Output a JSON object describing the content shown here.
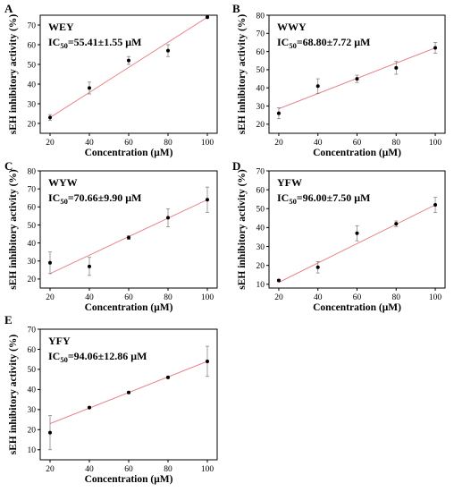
{
  "chart_data": [
    {
      "type": "scatter",
      "panel_label": "A",
      "series_label": "WEY",
      "ic50_prefix": "IC",
      "ic50_sub": "50",
      "ic50_value": "=55.41±1.55 μM",
      "xlabel": "Concentration (μM)",
      "ylabel": "sEH inhibitory activity (%)",
      "xlim": [
        15,
        105
      ],
      "ylim": [
        15,
        75
      ],
      "xticks": [
        20,
        40,
        60,
        80,
        100
      ],
      "yticks": [
        20,
        30,
        40,
        50,
        60,
        70
      ],
      "x": [
        20,
        40,
        60,
        80,
        100
      ],
      "y": [
        23,
        38,
        52,
        57,
        74
      ],
      "yerr": [
        1.5,
        3,
        2,
        3,
        0.5
      ],
      "fit": [
        [
          20,
          23
        ],
        [
          100,
          74
        ]
      ],
      "colors": {
        "points": "#000000",
        "fit": "#e8777e"
      }
    },
    {
      "type": "scatter",
      "panel_label": "B",
      "series_label": "WWY",
      "ic50_prefix": "IC",
      "ic50_sub": "50",
      "ic50_value": "=68.80±7.72 μM",
      "xlabel": "Concentration (μM)",
      "ylabel": "sEH inhibitory activity (%)",
      "xlim": [
        15,
        105
      ],
      "ylim": [
        15,
        80
      ],
      "xticks": [
        20,
        40,
        60,
        80,
        100
      ],
      "yticks": [
        20,
        30,
        40,
        50,
        60,
        70,
        80
      ],
      "x": [
        20,
        40,
        60,
        80,
        100
      ],
      "y": [
        26,
        41,
        45,
        51,
        62
      ],
      "yerr": [
        3,
        4,
        2,
        3.5,
        3
      ],
      "fit": [
        [
          20,
          28.5
        ],
        [
          100,
          62
        ]
      ],
      "colors": {
        "points": "#000000",
        "fit": "#e8777e"
      }
    },
    {
      "type": "scatter",
      "panel_label": "C",
      "series_label": "WYW",
      "ic50_prefix": "IC",
      "ic50_sub": "50",
      "ic50_value": "=70.66±9.90 μM",
      "xlabel": "Concentration (μM)",
      "ylabel": "sEH inhibitory activity (%)",
      "xlim": [
        15,
        105
      ],
      "ylim": [
        15,
        80
      ],
      "xticks": [
        20,
        40,
        60,
        80,
        100
      ],
      "yticks": [
        20,
        30,
        40,
        50,
        60,
        70,
        80
      ],
      "x": [
        20,
        40,
        60,
        80,
        100
      ],
      "y": [
        29,
        27,
        43,
        54,
        64
      ],
      "yerr": [
        6,
        5,
        1,
        5,
        7
      ],
      "fit": [
        [
          20,
          23
        ],
        [
          100,
          64
        ]
      ],
      "colors": {
        "points": "#000000",
        "fit": "#e8777e"
      }
    },
    {
      "type": "scatter",
      "panel_label": "D",
      "series_label": "YFW",
      "ic50_prefix": "IC",
      "ic50_sub": "50",
      "ic50_value": "=96.00±7.50 μM",
      "xlabel": "Concentration (μM)",
      "ylabel": "sEH inhibitory activity (%)",
      "xlim": [
        15,
        105
      ],
      "ylim": [
        8,
        70
      ],
      "xticks": [
        20,
        40,
        60,
        80,
        100
      ],
      "yticks": [
        10,
        20,
        30,
        40,
        50,
        60,
        70
      ],
      "x": [
        20,
        40,
        60,
        80,
        100
      ],
      "y": [
        12,
        19,
        37,
        42,
        52
      ],
      "yerr": [
        0.5,
        3,
        4,
        1.5,
        4
      ],
      "fit": [
        [
          20,
          11
        ],
        [
          100,
          52
        ]
      ],
      "colors": {
        "points": "#000000",
        "fit": "#e8777e"
      }
    },
    {
      "type": "scatter",
      "panel_label": "E",
      "series_label": "YFY",
      "ic50_prefix": "IC",
      "ic50_sub": "50",
      "ic50_value": "=94.06±12.86 μM",
      "xlabel": "Concentration (μM)",
      "ylabel": "sEH inhibitory activity (%)",
      "xlim": [
        15,
        105
      ],
      "ylim": [
        5,
        70
      ],
      "xticks": [
        20,
        40,
        60,
        80,
        100
      ],
      "yticks": [
        10,
        20,
        30,
        40,
        50,
        60,
        70
      ],
      "x": [
        20,
        40,
        60,
        80,
        100
      ],
      "y": [
        18.5,
        31,
        38.5,
        46,
        54
      ],
      "yerr": [
        8.5,
        0.5,
        0.5,
        0.5,
        7.5
      ],
      "fit": [
        [
          20,
          23
        ],
        [
          100,
          54
        ]
      ],
      "colors": {
        "points": "#000000",
        "fit": "#e8777e"
      }
    }
  ]
}
